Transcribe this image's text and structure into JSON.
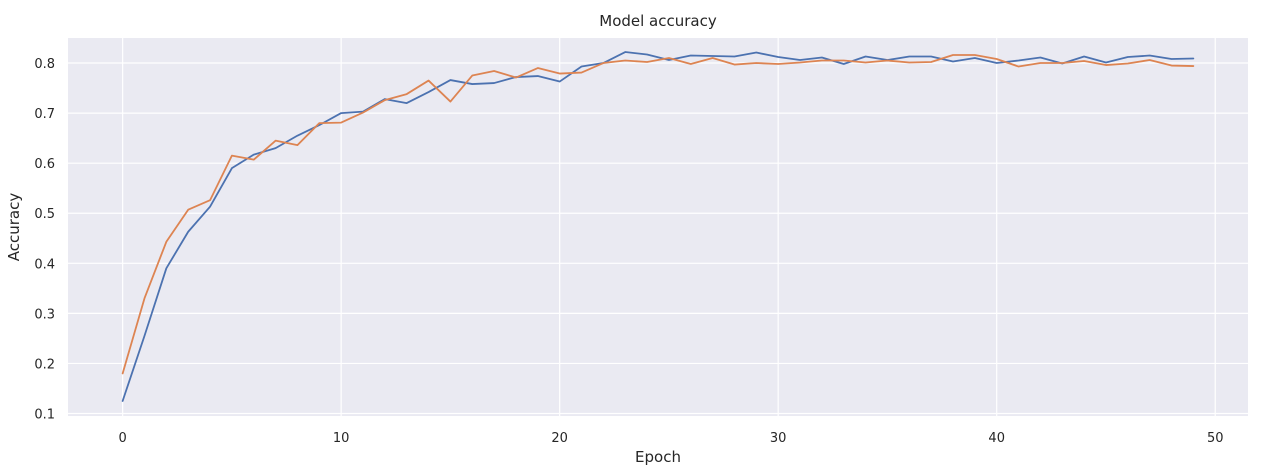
{
  "chart_data": {
    "type": "line",
    "title": "Model accuracy",
    "xlabel": "Epoch",
    "ylabel": "Accuracy",
    "xlim": [
      -2.5,
      51.5
    ],
    "ylim": [
      0.095,
      0.85
    ],
    "xticks": [
      0,
      10,
      20,
      30,
      40,
      50
    ],
    "yticks": [
      0.1,
      0.2,
      0.3,
      0.4,
      0.5,
      0.6,
      0.7,
      0.8
    ],
    "grid": true,
    "background": "#eaeaf2",
    "x": [
      0,
      1,
      2,
      3,
      4,
      5,
      6,
      7,
      8,
      9,
      10,
      11,
      12,
      13,
      14,
      15,
      16,
      17,
      18,
      19,
      20,
      21,
      22,
      23,
      24,
      25,
      26,
      27,
      28,
      29,
      30,
      31,
      32,
      33,
      34,
      35,
      36,
      37,
      38,
      39,
      40,
      41,
      42,
      43,
      44,
      45,
      46,
      47,
      48,
      49
    ],
    "series": [
      {
        "color": "#4c72b0",
        "values": [
          0.125,
          0.255,
          0.39,
          0.463,
          0.513,
          0.59,
          0.617,
          0.63,
          0.655,
          0.676,
          0.7,
          0.703,
          0.728,
          0.72,
          0.742,
          0.766,
          0.758,
          0.76,
          0.772,
          0.774,
          0.763,
          0.793,
          0.8,
          0.822,
          0.817,
          0.806,
          0.815,
          0.814,
          0.813,
          0.821,
          0.812,
          0.806,
          0.811,
          0.798,
          0.813,
          0.806,
          0.813,
          0.813,
          0.803,
          0.81,
          0.8,
          0.805,
          0.811,
          0.799,
          0.813,
          0.801,
          0.812,
          0.815,
          0.808,
          0.809
        ]
      },
      {
        "color": "#dd8452",
        "values": [
          0.18,
          0.33,
          0.443,
          0.507,
          0.526,
          0.615,
          0.607,
          0.645,
          0.636,
          0.68,
          0.681,
          0.701,
          0.726,
          0.738,
          0.765,
          0.723,
          0.775,
          0.784,
          0.771,
          0.79,
          0.779,
          0.781,
          0.8,
          0.805,
          0.802,
          0.81,
          0.798,
          0.81,
          0.797,
          0.8,
          0.798,
          0.801,
          0.805,
          0.805,
          0.801,
          0.805,
          0.801,
          0.802,
          0.816,
          0.816,
          0.808,
          0.793,
          0.8,
          0.8,
          0.804,
          0.796,
          0.799,
          0.806,
          0.795,
          0.794
        ]
      }
    ]
  }
}
